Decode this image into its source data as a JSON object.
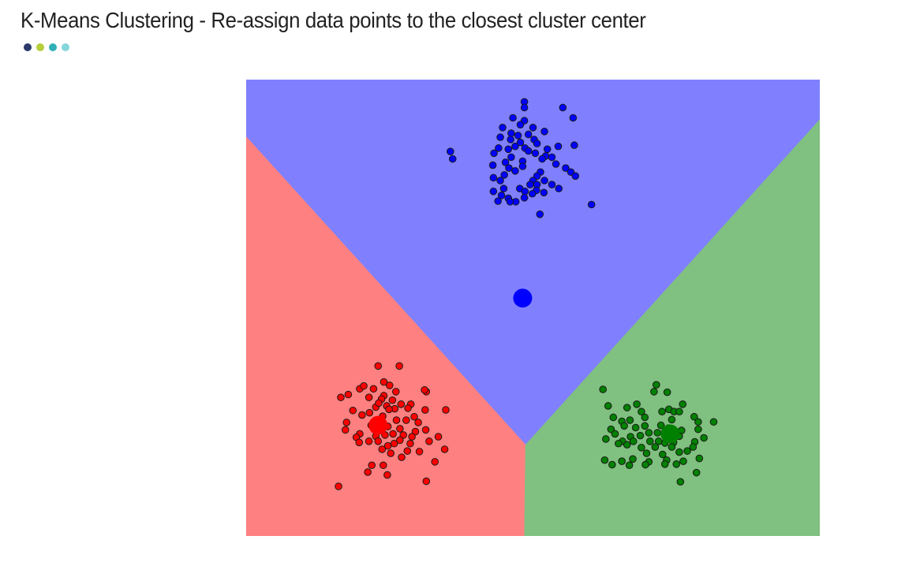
{
  "title": "K-Means Clustering - Re-assign data points to the closest cluster center",
  "decor_dots": [
    "#2b3a6b",
    "#b5cf3a",
    "#2fb0b5",
    "#86d6db"
  ],
  "chart_data": {
    "type": "scatter",
    "title": "K-Means Clustering - Re-assign data points to the closest cluster center",
    "xlim": [
      0,
      10
    ],
    "ylim": [
      0,
      8
    ],
    "grid": false,
    "region_colors": {
      "blue": "#8080ff",
      "red": "#ff8080",
      "green": "#80c080"
    },
    "cluster_colors": {
      "blue": "#0000ff",
      "red": "#ff0000",
      "green": "#008000"
    },
    "centroids": [
      {
        "cluster": "blue",
        "x": 4.82,
        "y": 4.17
      },
      {
        "cluster": "red",
        "x": 2.3,
        "y": 1.94
      },
      {
        "cluster": "green",
        "x": 7.39,
        "y": 1.79
      }
    ],
    "regions": [
      {
        "cluster": "blue",
        "polygon": [
          [
            0,
            8
          ],
          [
            10,
            8
          ],
          [
            10,
            7.3
          ],
          [
            4.87,
            1.6
          ],
          [
            0,
            7.0
          ]
        ]
      },
      {
        "cluster": "red",
        "polygon": [
          [
            0,
            7.0
          ],
          [
            4.87,
            1.6
          ],
          [
            4.85,
            0
          ],
          [
            0,
            0
          ]
        ]
      },
      {
        "cluster": "green",
        "polygon": [
          [
            4.87,
            1.6
          ],
          [
            10,
            7.3
          ],
          [
            10,
            0
          ],
          [
            4.85,
            0
          ]
        ]
      }
    ],
    "series": [
      {
        "cluster": "blue",
        "points": [
          [
            4.85,
            7.61
          ],
          [
            4.85,
            7.51
          ],
          [
            5.52,
            7.51
          ],
          [
            5.7,
            7.33
          ],
          [
            4.65,
            7.33
          ],
          [
            4.85,
            7.28
          ],
          [
            4.78,
            7.21
          ],
          [
            5.0,
            7.16
          ],
          [
            4.47,
            7.16
          ],
          [
            5.2,
            7.09
          ],
          [
            4.62,
            7.06
          ],
          [
            4.92,
            7.04
          ],
          [
            4.74,
            7.02
          ],
          [
            5.02,
            6.95
          ],
          [
            4.43,
            6.99
          ],
          [
            4.61,
            6.95
          ],
          [
            4.78,
            6.9
          ],
          [
            5.07,
            6.88
          ],
          [
            4.69,
            6.83
          ],
          [
            4.57,
            6.78
          ],
          [
            5.72,
            6.85
          ],
          [
            5.44,
            6.83
          ],
          [
            4.86,
            6.8
          ],
          [
            4.4,
            6.8
          ],
          [
            4.92,
            6.75
          ],
          [
            5.25,
            6.78
          ],
          [
            3.56,
            6.74
          ],
          [
            4.32,
            6.71
          ],
          [
            5.04,
            6.71
          ],
          [
            5.22,
            6.66
          ],
          [
            4.62,
            6.64
          ],
          [
            5.33,
            6.64
          ],
          [
            3.6,
            6.61
          ],
          [
            4.82,
            6.57
          ],
          [
            5.16,
            6.61
          ],
          [
            4.52,
            6.55
          ],
          [
            4.3,
            6.5
          ],
          [
            5.4,
            6.52
          ],
          [
            4.82,
            6.48
          ],
          [
            4.58,
            6.45
          ],
          [
            5.57,
            6.45
          ],
          [
            4.69,
            6.4
          ],
          [
            5.13,
            6.38
          ],
          [
            4.5,
            6.33
          ],
          [
            5.66,
            6.38
          ],
          [
            5.74,
            6.31
          ],
          [
            5.07,
            6.31
          ],
          [
            4.31,
            6.28
          ],
          [
            5.0,
            6.23
          ],
          [
            5.2,
            6.23
          ],
          [
            4.43,
            6.23
          ],
          [
            4.95,
            6.16
          ],
          [
            5.33,
            6.16
          ],
          [
            5.07,
            6.16
          ],
          [
            4.49,
            6.09
          ],
          [
            4.77,
            6.09
          ],
          [
            5.06,
            6.06
          ],
          [
            5.45,
            6.09
          ],
          [
            4.86,
            6.04
          ],
          [
            5.19,
            6.02
          ],
          [
            4.31,
            6.04
          ],
          [
            4.99,
            6.0
          ],
          [
            4.45,
            5.97
          ],
          [
            4.57,
            5.92
          ],
          [
            4.85,
            5.93
          ],
          [
            4.39,
            5.87
          ],
          [
            4.7,
            5.86
          ],
          [
            4.6,
            5.86
          ],
          [
            6.02,
            5.81
          ],
          [
            5.12,
            5.64
          ]
        ]
      },
      {
        "cluster": "red",
        "points": [
          [
            2.3,
            2.98
          ],
          [
            2.67,
            2.98
          ],
          [
            1.98,
            2.58
          ],
          [
            2.05,
            2.63
          ],
          [
            2.4,
            2.7
          ],
          [
            2.5,
            2.64
          ],
          [
            2.22,
            2.58
          ],
          [
            2.61,
            2.53
          ],
          [
            3.14,
            2.53
          ],
          [
            1.78,
            2.48
          ],
          [
            1.65,
            2.43
          ],
          [
            2.4,
            2.46
          ],
          [
            3.11,
            2.56
          ],
          [
            2.14,
            2.43
          ],
          [
            2.36,
            2.4
          ],
          [
            2.55,
            2.38
          ],
          [
            2.26,
            2.26
          ],
          [
            2.87,
            2.31
          ],
          [
            2.31,
            2.33
          ],
          [
            2.45,
            2.28
          ],
          [
            2.7,
            2.31
          ],
          [
            2.82,
            2.24
          ],
          [
            2.59,
            2.23
          ],
          [
            1.86,
            2.2
          ],
          [
            2.15,
            2.16
          ],
          [
            2.49,
            2.22
          ],
          [
            3.12,
            2.21
          ],
          [
            3.48,
            2.21
          ],
          [
            2.02,
            2.12
          ],
          [
            2.38,
            2.1
          ],
          [
            2.93,
            2.09
          ],
          [
            2.79,
            2.03
          ],
          [
            2.62,
            2.03
          ],
          [
            3.0,
            1.99
          ],
          [
            1.75,
            1.99
          ],
          [
            2.18,
            1.94
          ],
          [
            2.31,
            1.92
          ],
          [
            2.47,
            1.92
          ],
          [
            2.68,
            1.88
          ],
          [
            1.73,
            1.86
          ],
          [
            2.95,
            1.83
          ],
          [
            3.13,
            1.86
          ],
          [
            1.98,
            1.79
          ],
          [
            2.56,
            1.79
          ],
          [
            2.26,
            1.75
          ],
          [
            2.42,
            1.77
          ],
          [
            2.74,
            1.77
          ],
          [
            2.89,
            1.74
          ],
          [
            1.92,
            1.73
          ],
          [
            3.35,
            1.74
          ],
          [
            2.14,
            1.66
          ],
          [
            2.68,
            1.68
          ],
          [
            2.3,
            1.66
          ],
          [
            2.58,
            1.62
          ],
          [
            2.86,
            1.62
          ],
          [
            3.19,
            1.66
          ],
          [
            2.47,
            1.58
          ],
          [
            2.37,
            1.52
          ],
          [
            1.97,
            1.64
          ],
          [
            2.81,
            1.49
          ],
          [
            3.02,
            1.48
          ],
          [
            3.46,
            1.52
          ],
          [
            2.52,
            1.45
          ],
          [
            2.71,
            1.38
          ],
          [
            3.29,
            1.3
          ],
          [
            2.19,
            1.24
          ],
          [
            2.12,
            1.12
          ],
          [
            2.39,
            1.24
          ],
          [
            2.46,
            1.07
          ],
          [
            3.14,
            0.96
          ],
          [
            1.61,
            0.87
          ]
        ]
      },
      {
        "cluster": "green",
        "points": [
          [
            7.15,
            2.65
          ],
          [
            6.22,
            2.57
          ],
          [
            7.34,
            2.52
          ],
          [
            7.11,
            2.53
          ],
          [
            6.81,
            2.31
          ],
          [
            7.61,
            2.31
          ],
          [
            6.31,
            2.28
          ],
          [
            6.64,
            2.25
          ],
          [
            7.37,
            2.22
          ],
          [
            7.25,
            2.18
          ],
          [
            6.89,
            2.18
          ],
          [
            6.95,
            2.08
          ],
          [
            7.46,
            2.18
          ],
          [
            7.55,
            2.18
          ],
          [
            6.4,
            2.08
          ],
          [
            7.42,
            2.04
          ],
          [
            7.81,
            2.09
          ],
          [
            6.69,
            2.03
          ],
          [
            7.88,
            2.0
          ],
          [
            6.55,
            2.01
          ],
          [
            8.15,
            2.0
          ],
          [
            6.59,
            1.93
          ],
          [
            7.23,
            1.94
          ],
          [
            7.36,
            1.89
          ],
          [
            7.88,
            1.87
          ],
          [
            6.79,
            1.9
          ],
          [
            6.95,
            1.93
          ],
          [
            6.36,
            1.87
          ],
          [
            7.59,
            1.85
          ],
          [
            7.17,
            1.81
          ],
          [
            7.02,
            1.81
          ],
          [
            6.43,
            1.79
          ],
          [
            7.31,
            1.79
          ],
          [
            6.87,
            1.76
          ],
          [
            7.55,
            1.75
          ],
          [
            7.47,
            1.73
          ],
          [
            6.7,
            1.74
          ],
          [
            7.98,
            1.72
          ],
          [
            6.27,
            1.7
          ],
          [
            6.56,
            1.66
          ],
          [
            6.75,
            1.66
          ],
          [
            7.19,
            1.66
          ],
          [
            7.04,
            1.66
          ],
          [
            7.82,
            1.65
          ],
          [
            7.3,
            1.63
          ],
          [
            7.45,
            1.64
          ],
          [
            7.79,
            1.56
          ],
          [
            6.64,
            1.6
          ],
          [
            6.89,
            1.55
          ],
          [
            7.13,
            1.56
          ],
          [
            7.42,
            1.56
          ],
          [
            6.49,
            1.62
          ],
          [
            7.69,
            1.49
          ],
          [
            7.55,
            1.47
          ],
          [
            7.26,
            1.43
          ],
          [
            6.98,
            1.45
          ],
          [
            6.74,
            1.35
          ],
          [
            7.33,
            1.33
          ],
          [
            7.62,
            1.31
          ],
          [
            6.25,
            1.33
          ],
          [
            6.55,
            1.31
          ],
          [
            7.02,
            1.3
          ],
          [
            6.68,
            1.24
          ],
          [
            6.38,
            1.25
          ],
          [
            7.3,
            1.26
          ],
          [
            7.5,
            1.26
          ],
          [
            6.96,
            1.25
          ],
          [
            7.9,
            1.36
          ],
          [
            7.85,
            1.11
          ],
          [
            7.57,
            0.95
          ]
        ]
      }
    ]
  }
}
